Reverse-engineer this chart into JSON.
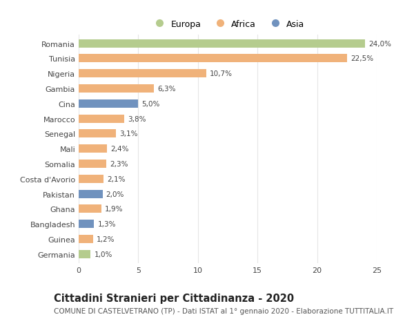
{
  "categories": [
    "Romania",
    "Tunisia",
    "Nigeria",
    "Gambia",
    "Cina",
    "Marocco",
    "Senegal",
    "Mali",
    "Somalia",
    "Costa d'Avorio",
    "Pakistan",
    "Ghana",
    "Bangladesh",
    "Guinea",
    "Germania"
  ],
  "values": [
    24.0,
    22.5,
    10.7,
    6.3,
    5.0,
    3.8,
    3.1,
    2.4,
    2.3,
    2.1,
    2.0,
    1.9,
    1.3,
    1.2,
    1.0
  ],
  "labels": [
    "24,0%",
    "22,5%",
    "10,7%",
    "6,3%",
    "5,0%",
    "3,8%",
    "3,1%",
    "2,4%",
    "2,3%",
    "2,1%",
    "2,0%",
    "1,9%",
    "1,3%",
    "1,2%",
    "1,0%"
  ],
  "continents": [
    "Europa",
    "Africa",
    "Africa",
    "Africa",
    "Asia",
    "Africa",
    "Africa",
    "Africa",
    "Africa",
    "Africa",
    "Asia",
    "Africa",
    "Asia",
    "Africa",
    "Europa"
  ],
  "colors": {
    "Europa": "#b5cc8e",
    "Africa": "#f0b27a",
    "Asia": "#7092be"
  },
  "title": "Cittadini Stranieri per Cittadinanza - 2020",
  "subtitle": "COMUNE DI CASTELVETRANO (TP) - Dati ISTAT al 1° gennaio 2020 - Elaborazione TUTTITALIA.IT",
  "xlim": [
    0,
    25
  ],
  "xticks": [
    0,
    5,
    10,
    15,
    20,
    25
  ],
  "background_color": "#ffffff",
  "grid_color": "#e5e5e5",
  "bar_height": 0.55,
  "title_fontsize": 10.5,
  "subtitle_fontsize": 7.5,
  "label_fontsize": 7.5,
  "tick_fontsize": 8,
  "legend_fontsize": 9
}
